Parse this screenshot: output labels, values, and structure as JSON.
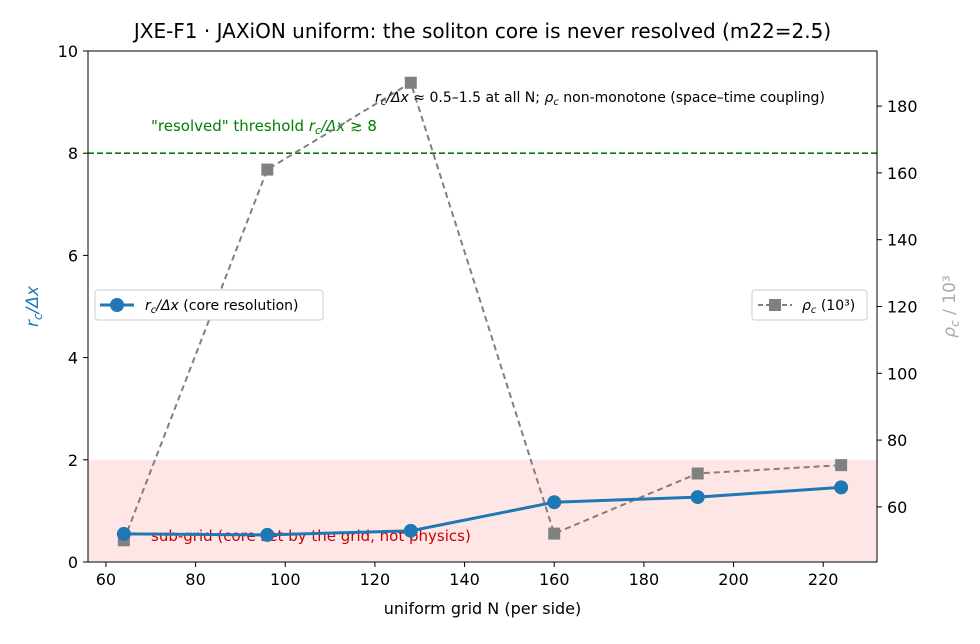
{
  "chart_data": {
    "type": "line",
    "title": "JXE-F1 · JAXiON uniform: the soliton core is never resolved (m22=2.5)",
    "xlabel": "uniform grid N (per side)",
    "ylabel_left": "r_c/Δx",
    "ylabel_right": "ρ_c / 10³",
    "xlim": [
      56,
      232
    ],
    "ylim_left": [
      0,
      10
    ],
    "ylim_right": [
      43.5,
      196.5
    ],
    "x_ticks": [
      60,
      80,
      100,
      120,
      140,
      160,
      180,
      200,
      220
    ],
    "y_ticks_left": [
      0,
      2,
      4,
      6,
      8,
      10
    ],
    "y_ticks_right": [
      60,
      80,
      100,
      120,
      140,
      160,
      180
    ],
    "x": [
      64,
      96,
      128,
      160,
      192,
      224
    ],
    "series": [
      {
        "name": "r_c/Δx (core resolution)",
        "axis": "left",
        "color": "#1f77b4",
        "marker": "circle",
        "style": "solid",
        "values": [
          0.55,
          0.53,
          0.61,
          1.17,
          1.27,
          1.46
        ]
      },
      {
        "name": "ρ_c (10³)",
        "axis": "right",
        "color": "#808080",
        "marker": "square",
        "style": "dashed",
        "values": [
          50,
          161,
          187,
          52,
          70,
          72.5
        ]
      }
    ],
    "threshold": {
      "value": 8,
      "color": "#008000",
      "label": "\"resolved\" threshold  r_c/Δx ≳ 8"
    },
    "subgrid_band": {
      "ymin": 0,
      "ymax": 2,
      "color": "#ffe6e6",
      "label": "sub-grid (core set by the grid, not physics)",
      "label_color": "#cc0000"
    },
    "annotation": "r_c/Δx ≈ 0.5–1.5 at all N; ρ_c non-monotone (space–time coupling)",
    "legend_left_placement": "center-left",
    "legend_right_placement": "center-right",
    "grid": false
  }
}
